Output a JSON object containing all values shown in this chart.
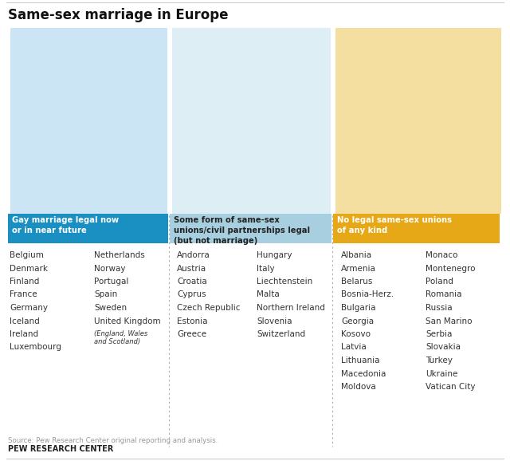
{
  "title": "Same-sex marriage in Europe",
  "top_line_color": "#cccccc",
  "bg_color": "#ffffff",
  "col1": {
    "header": "Gay marriage legal now\nor in near future",
    "header_bg": "#1a8fc1",
    "header_text_color": "#ffffff",
    "highlight_color": "#1a8fc1",
    "countries": [
      "Belgium",
      "Denmark",
      "Finland",
      "France",
      "Germany",
      "Iceland",
      "Ireland",
      "Luxembourg",
      "Netherlands",
      "Norway",
      "Portugal",
      "Spain",
      "Sweden",
      "United Kingdom"
    ],
    "col1_list": [
      "Belgium",
      "Denmark",
      "Finland",
      "France",
      "Germany",
      "Iceland",
      "Ireland",
      "Luxembourg"
    ],
    "col2_list": [
      "Netherlands",
      "Norway",
      "Portugal",
      "Spain",
      "Sweden",
      "United Kingdom"
    ]
  },
  "col2": {
    "header": "Some form of same-sex\nunions/civil partnerships legal\n(but not marriage)",
    "header_bg": "#a8cfdf",
    "header_text_color": "#222222",
    "highlight_color": "#5aabcc",
    "countries": [
      "Andorra",
      "Austria",
      "Croatia",
      "Cyprus",
      "Czech Republic",
      "Estonia",
      "Greece",
      "Hungary",
      "Italy",
      "Liechtenstein",
      "Malta",
      "Northern Ireland",
      "Slovenia",
      "Switzerland"
    ],
    "col1_list": [
      "Andorra",
      "Austria",
      "Croatia",
      "Cyprus",
      "Czech Republic",
      "Estonia",
      "Greece"
    ],
    "col2_list": [
      "Hungary",
      "Italy",
      "Liechtenstein",
      "Malta",
      "Northern Ireland",
      "Slovenia",
      "Switzerland"
    ]
  },
  "col3": {
    "header": "No legal same-sex unions\nof any kind",
    "header_bg": "#e6a817",
    "header_text_color": "#ffffff",
    "highlight_color": "#e6a817",
    "countries": [
      "Albania",
      "Armenia",
      "Belarus",
      "Bosnia-Herz.",
      "Bulgaria",
      "Georgia",
      "Kosovo",
      "Latvia",
      "Lithuania",
      "Macedonia",
      "Moldova",
      "Monaco",
      "Montenegro",
      "Poland",
      "Romania",
      "Russia",
      "San Marino",
      "Serbia",
      "Slovakia",
      "Turkey",
      "Ukraine",
      "Vatican City"
    ],
    "col1_list": [
      "Albania",
      "Armenia",
      "Belarus",
      "Bosnia-Herz.",
      "Bulgaria",
      "Georgia",
      "Kosovo",
      "Latvia",
      "Lithuania",
      "Macedonia",
      "Moldova"
    ],
    "col2_list": [
      "Monaco",
      "Montenegro",
      "Poland",
      "Romania",
      "Russia",
      "San Marino",
      "Serbia",
      "Slovakia",
      "Turkey",
      "Ukraine",
      "Vatican City"
    ]
  },
  "uk_note": "(England, Wales\nand Scotland)",
  "source_text": "Source: Pew Research Center original reporting and analysis.",
  "brand_text": "PEW RESEARCH CENTER",
  "text_color": "#333333",
  "source_color": "#999999",
  "divider_color": "#aaaaaa"
}
